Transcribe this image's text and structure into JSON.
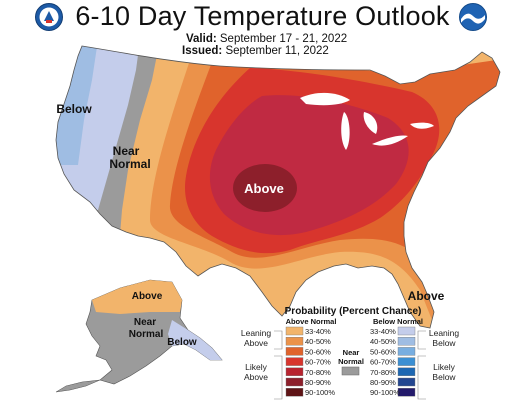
{
  "title": "6-10 Day Temperature Outlook",
  "valid_label": "Valid:",
  "valid_dates": "September 17 - 21, 2022",
  "issued_label": "Issued:",
  "issued_date": "September 11, 2022",
  "logos": [
    {
      "name": "commerce-seal",
      "color": "#1d5aa6"
    },
    {
      "name": "noaa-logo",
      "color": "#1f63b3"
    }
  ],
  "map_labels": {
    "west_below": "Below",
    "west_near_1": "Near",
    "west_near_2": "Normal",
    "central_above": "Above",
    "florida_above": "Above",
    "alaska_above": "Above",
    "alaska_near_1": "Near",
    "alaska_near_2": "Normal",
    "alaska_below": "Below"
  },
  "legend": {
    "title": "Probability (Percent Chance)",
    "above_header": "Above Normal",
    "below_header": "Below Normal",
    "near_label_1": "Near",
    "near_label_2": "Normal",
    "near_color": "#9b9b9b",
    "leaning_above_1": "Leaning",
    "leaning_above_2": "Above",
    "likely_above_1": "Likely",
    "likely_above_2": "Above",
    "leaning_below_1": "Leaning",
    "leaning_below_2": "Below",
    "likely_below_1": "Likely",
    "likely_below_2": "Below",
    "above_bins": [
      {
        "label": "33-40%",
        "color": "#f2b46b"
      },
      {
        "label": "40-50%",
        "color": "#eb924a"
      },
      {
        "label": "50-60%",
        "color": "#e0632c"
      },
      {
        "label": "60-70%",
        "color": "#d8352d"
      },
      {
        "label": "70-80%",
        "color": "#b8232f"
      },
      {
        "label": "80-90%",
        "color": "#8d1f2b"
      },
      {
        "label": "90-100%",
        "color": "#5e1416"
      }
    ],
    "below_bins": [
      {
        "label": "33-40%",
        "color": "#c4cdeb"
      },
      {
        "label": "40-50%",
        "color": "#9fbde3"
      },
      {
        "label": "50-60%",
        "color": "#78aee0"
      },
      {
        "label": "60-70%",
        "color": "#3b8fd3"
      },
      {
        "label": "70-80%",
        "color": "#1d67b2"
      },
      {
        "label": "80-90%",
        "color": "#234690"
      },
      {
        "label": "90-100%",
        "color": "#231a6b"
      }
    ]
  }
}
